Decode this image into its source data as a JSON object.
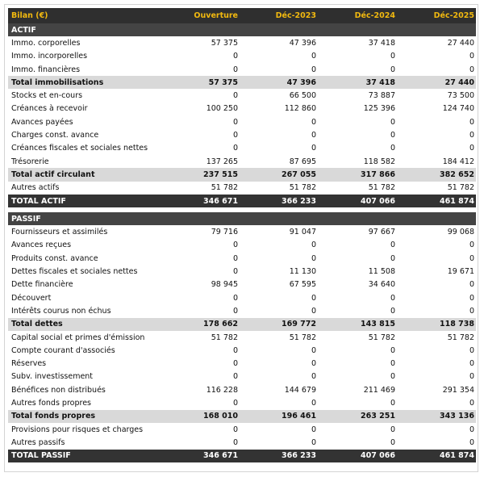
{
  "table": {
    "header": [
      "Bilan (€)",
      "Ouverture",
      "Déc-2023",
      "Déc-2024",
      "Déc-2025"
    ],
    "sections": [
      {
        "title": "ACTIF",
        "rows": [
          [
            "Immo. corporelles",
            "57 375",
            "47 396",
            "37 418",
            "27 440"
          ],
          [
            "Immo. incorporelles",
            "0",
            "0",
            "0",
            "0"
          ],
          [
            "Immo. financières",
            "0",
            "0",
            "0",
            "0"
          ],
          {
            "subtotal": [
              "Total immobilisations",
              "57 375",
              "47 396",
              "37 418",
              "27 440"
            ]
          },
          [
            "Stocks et en-cours",
            "0",
            "66 500",
            "73 887",
            "73 500"
          ],
          [
            "Créances à recevoir",
            "100 250",
            "112 860",
            "125 396",
            "124 740"
          ],
          [
            "Avances payées",
            "0",
            "0",
            "0",
            "0"
          ],
          [
            "Charges const. avance",
            "0",
            "0",
            "0",
            "0"
          ],
          [
            "Créances fiscales et sociales nettes",
            "0",
            "0",
            "0",
            "0"
          ],
          [
            "Trésorerie",
            "137 265",
            "87 695",
            "118 582",
            "184 412"
          ],
          {
            "subtotal": [
              "Total actif circulant",
              "237 515",
              "267 055",
              "317 866",
              "382 652"
            ]
          },
          [
            "Autres actifs",
            "51 782",
            "51 782",
            "51 782",
            "51 782"
          ]
        ],
        "total": [
          "TOTAL ACTIF",
          "346 671",
          "366 233",
          "407 066",
          "461 874"
        ]
      },
      {
        "title": "PASSIF",
        "rows": [
          [
            "Fournisseurs et assimilés",
            "79 716",
            "91 047",
            "97 667",
            "99 068"
          ],
          [
            "Avances reçues",
            "0",
            "0",
            "0",
            "0"
          ],
          [
            "Produits const. avance",
            "0",
            "0",
            "0",
            "0"
          ],
          [
            "Dettes fiscales et sociales nettes",
            "0",
            "11 130",
            "11 508",
            "19 671"
          ],
          [
            "Dette financière",
            "98 945",
            "67 595",
            "34 640",
            "0"
          ],
          [
            "Découvert",
            "0",
            "0",
            "0",
            "0"
          ],
          [
            "Intérêts courus non échus",
            "0",
            "0",
            "0",
            "0"
          ],
          {
            "subtotal": [
              "Total dettes",
              "178 662",
              "169 772",
              "143 815",
              "118 738"
            ]
          },
          [
            "Capital social et primes d'émission",
            "51 782",
            "51 782",
            "51 782",
            "51 782"
          ],
          [
            "Compte courant d'associés",
            "0",
            "0",
            "0",
            "0"
          ],
          [
            "Réserves",
            "0",
            "0",
            "0",
            "0"
          ],
          [
            "Subv. investissement",
            "0",
            "0",
            "0",
            "0"
          ],
          [
            "Bénéfices non distribués",
            "116 228",
            "144 679",
            "211 469",
            "291 354"
          ],
          [
            "Autres fonds propres",
            "0",
            "0",
            "0",
            "0"
          ],
          {
            "subtotal": [
              "Total fonds propres",
              "168 010",
              "196 461",
              "263 251",
              "343 136"
            ]
          },
          [
            "Provisions pour risques et charges",
            "0",
            "0",
            "0",
            "0"
          ],
          [
            "Autres passifs",
            "0",
            "0",
            "0",
            "0"
          ]
        ],
        "total": [
          "TOTAL PASSIF",
          "346 671",
          "366 233",
          "407 066",
          "461 874"
        ]
      }
    ]
  }
}
